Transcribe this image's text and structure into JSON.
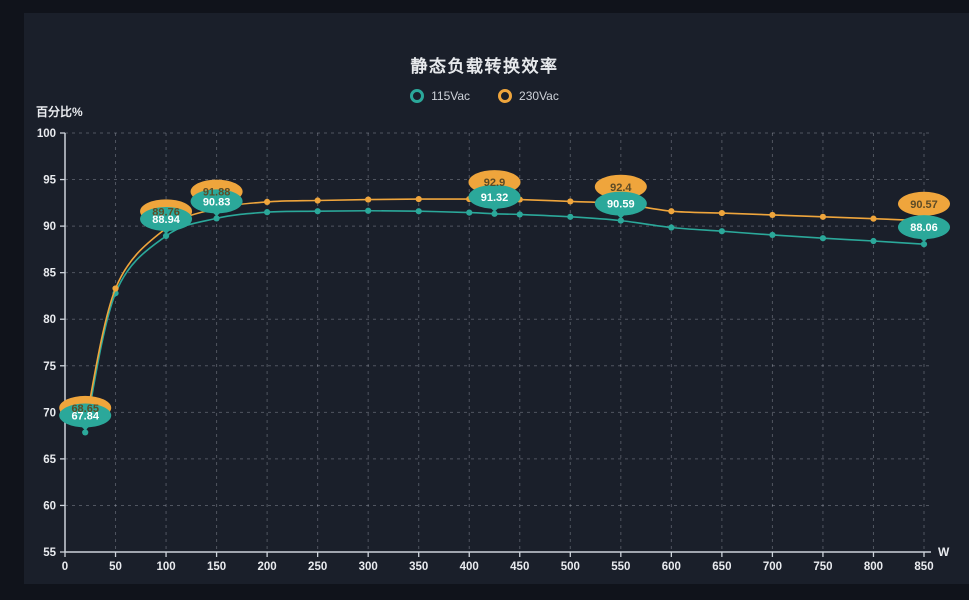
{
  "colors": {
    "outer_bg": "#10131b",
    "panel_bg": "#1a1f2a",
    "axis": "#ccd2da",
    "grid": "rgba(222,228,238,0.28)",
    "tick_label": "#e9ebef",
    "axis_name": "#e9ebef",
    "title": "#e7e9ec",
    "legend_text": "#ced2d9",
    "teal": "#2BA89A",
    "orange": "#EFA53C"
  },
  "chart_data": {
    "type": "line",
    "title": "静态负载转换效率",
    "xlabel": "W",
    "ylabel": "百分比%",
    "xlim": [
      0,
      850
    ],
    "ylim": [
      55,
      100
    ],
    "xticks": [
      0,
      50,
      100,
      150,
      200,
      250,
      300,
      350,
      400,
      450,
      500,
      550,
      600,
      650,
      700,
      750,
      800,
      850
    ],
    "yticks": [
      55,
      60,
      65,
      70,
      75,
      80,
      85,
      90,
      95,
      100
    ],
    "grid": "dashed",
    "legend_position": "top-center",
    "x": [
      20,
      50,
      100,
      150,
      200,
      250,
      300,
      350,
      400,
      425,
      450,
      500,
      550,
      600,
      650,
      700,
      750,
      800,
      850
    ],
    "series": [
      {
        "name": "115Vac",
        "color": "#2BA89A",
        "label_text_color": "#ffffff",
        "values": [
          67.84,
          82.8,
          88.94,
          90.83,
          91.5,
          91.6,
          91.65,
          91.6,
          91.45,
          91.32,
          91.25,
          91.0,
          90.59,
          89.85,
          89.45,
          89.05,
          88.7,
          88.4,
          88.06
        ],
        "point_labels": {
          "20": "67.84",
          "100": "88.94",
          "150": "90.83",
          "425": "91.32",
          "550": "90.59",
          "850": "88.06"
        }
      },
      {
        "name": "230Vac",
        "color": "#EFA53C",
        "label_text_color": "#5d4b26",
        "values": [
          68.65,
          83.3,
          89.76,
          91.88,
          92.6,
          92.75,
          92.85,
          92.9,
          92.9,
          92.9,
          92.85,
          92.65,
          92.4,
          91.6,
          91.4,
          91.2,
          91.0,
          90.8,
          90.57
        ],
        "point_labels": {
          "20": "68.65",
          "100": "89.76",
          "150": "91.88",
          "425": "92.9",
          "550": "92.4",
          "850": "90.57"
        }
      }
    ],
    "labeled_x": [
      20,
      100,
      150,
      425,
      550,
      850
    ]
  }
}
